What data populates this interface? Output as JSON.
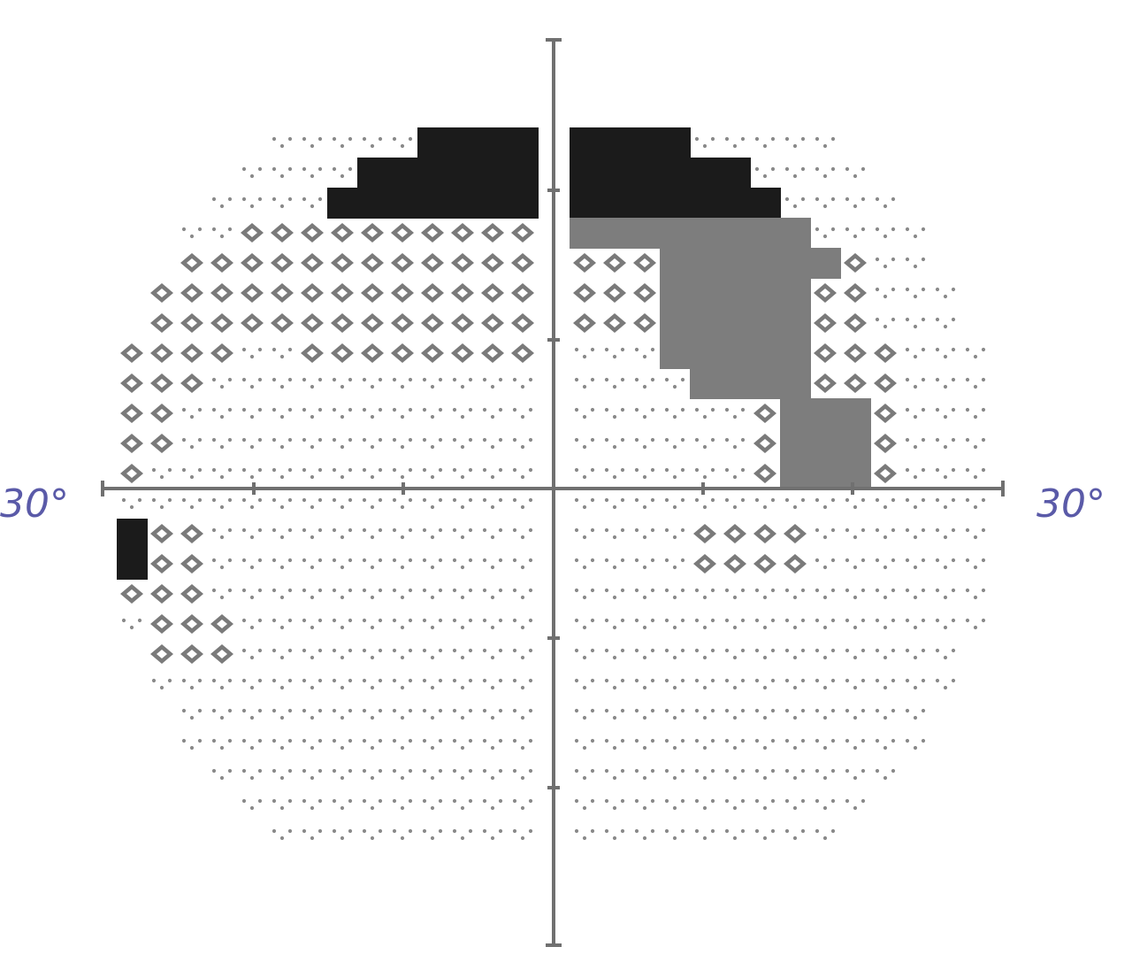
{
  "axes": {
    "left_label": "30°",
    "right_label": "30°"
  },
  "colors": {
    "axis": "#707070",
    "mild_symbol": "#8a8a8a",
    "moderate_symbol": "#7a7a7a",
    "moderate_fill": "#7d7d7d",
    "severe_fill": "#1b1b1b",
    "label": "#5a5aa8",
    "background": "#ffffff"
  },
  "legend_levels": [
    "normal",
    "mild",
    "moderate",
    "dark-grey",
    "black"
  ],
  "field_rows": [
    {
      "row": 0,
      "left": "",
      "right": ""
    },
    {
      "row": 1,
      "left": "",
      "right": ""
    },
    {
      "row": 2,
      "left": "",
      "right": ""
    },
    {
      "row": 3,
      "left": "",
      "right": ""
    },
    {
      "row": 4,
      "left": "",
      "right": ""
    },
    {
      "row": 5,
      "left": "",
      "right": ""
    },
    {
      "row": 6,
      "left": "",
      "right": ""
    },
    {
      "row": 7,
      "left": "",
      "right": ""
    },
    {
      "row": 8,
      "left": "",
      "right": ""
    },
    {
      "row": 9,
      "left": "",
      "right": ""
    },
    {
      "row": 10,
      "left": "",
      "right": ""
    },
    {
      "row": 11,
      "left": "",
      "right": ""
    }
  ]
}
